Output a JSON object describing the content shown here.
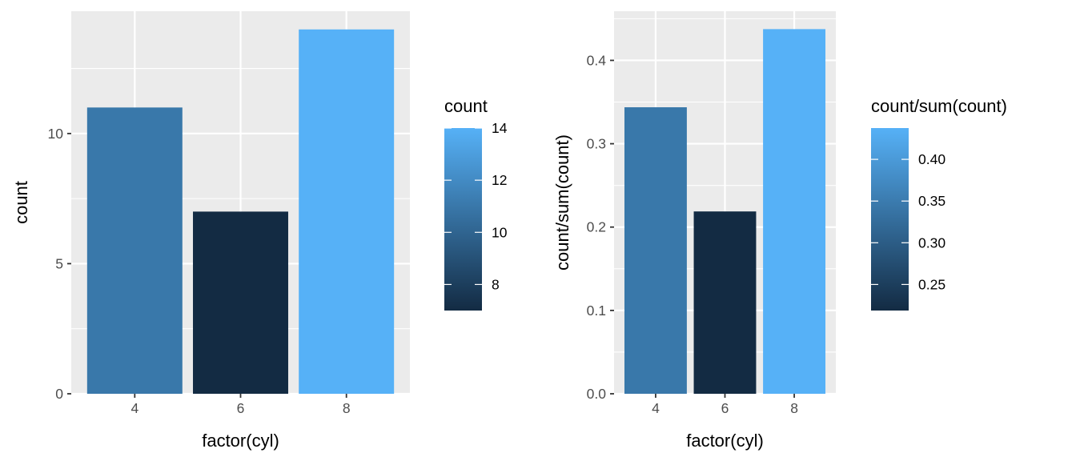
{
  "chart_data": [
    {
      "type": "bar",
      "categories": [
        "4",
        "6",
        "8"
      ],
      "values": [
        11,
        7,
        14
      ],
      "xlabel": "factor(cyl)",
      "ylabel": "count",
      "ylim": [
        0,
        14.7
      ],
      "yticks": [
        0,
        5,
        10
      ],
      "ytick_labels": [
        "0",
        "5",
        "10"
      ],
      "legend": {
        "title": "count",
        "position": "right",
        "range": [
          7,
          14
        ],
        "ticks": [
          8,
          10,
          12,
          14
        ],
        "tick_labels": [
          "8",
          "10",
          "12",
          "14"
        ],
        "low_color": "#132B43",
        "high_color": "#56B1F7"
      },
      "panel_background": "#EBEBEB",
      "grid": true
    },
    {
      "type": "bar",
      "categories": [
        "4",
        "6",
        "8"
      ],
      "values": [
        0.34375,
        0.21875,
        0.4375
      ],
      "xlabel": "factor(cyl)",
      "ylabel": "count/sum(count)",
      "ylim": [
        0,
        0.459
      ],
      "yticks": [
        0.0,
        0.1,
        0.2,
        0.3,
        0.4
      ],
      "ytick_labels": [
        "0.0",
        "0.1",
        "0.2",
        "0.3",
        "0.4"
      ],
      "legend": {
        "title": "count/sum(count)",
        "position": "right",
        "range": [
          0.21875,
          0.4375
        ],
        "ticks": [
          0.25,
          0.3,
          0.35,
          0.4
        ],
        "tick_labels": [
          "0.25",
          "0.30",
          "0.35",
          "0.40"
        ],
        "low_color": "#132B43",
        "high_color": "#56B1F7"
      },
      "panel_background": "#EBEBEB",
      "grid": true
    }
  ]
}
